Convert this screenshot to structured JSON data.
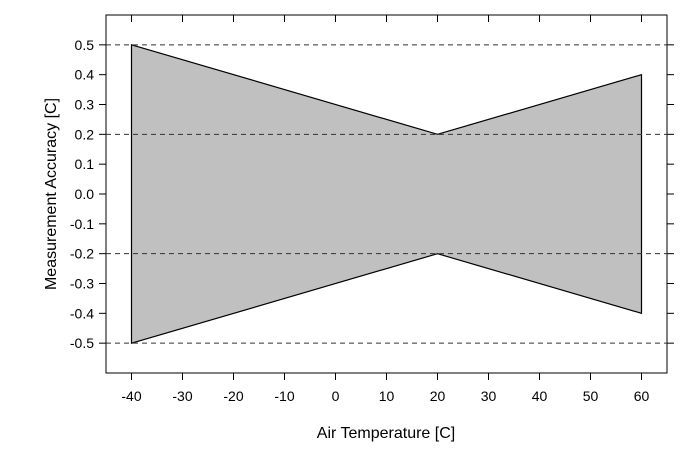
{
  "chart_data": {
    "type": "area",
    "xlabel": "Air Temperature [C]",
    "ylabel": "Measurement Accuracy [C]",
    "xlim": [
      -45,
      65
    ],
    "ylim": [
      -0.6,
      0.6
    ],
    "x_ticks": [
      -40,
      -30,
      -20,
      -10,
      0,
      10,
      20,
      30,
      40,
      50,
      60
    ],
    "x_tick_labels": [
      "-40",
      "-30",
      "-20",
      "-10",
      "0",
      "10",
      "20",
      "30",
      "40",
      "50",
      "60"
    ],
    "y_ticks": [
      0.5,
      0.4,
      0.3,
      0.2,
      0.1,
      0.0,
      -0.1,
      -0.2,
      -0.3,
      -0.4,
      -0.5
    ],
    "y_tick_labels": [
      "0.5",
      "0.4",
      "0.3",
      "0.2",
      "0.1",
      "0.0",
      "-0.1",
      "-0.2",
      "-0.3",
      "-0.4",
      "-0.5"
    ],
    "series": [
      {
        "x": [
          -40,
          20,
          60
        ],
        "upper": [
          0.5,
          0.2,
          0.4
        ],
        "lower": [
          -0.5,
          -0.2,
          -0.4
        ]
      }
    ],
    "reference_lines": [
      0.5,
      0.2,
      -0.2,
      -0.5
    ],
    "grid": false,
    "colors": {
      "fill": "#c0c0c0",
      "stroke": "#000000",
      "reference_line": "#333333"
    }
  }
}
